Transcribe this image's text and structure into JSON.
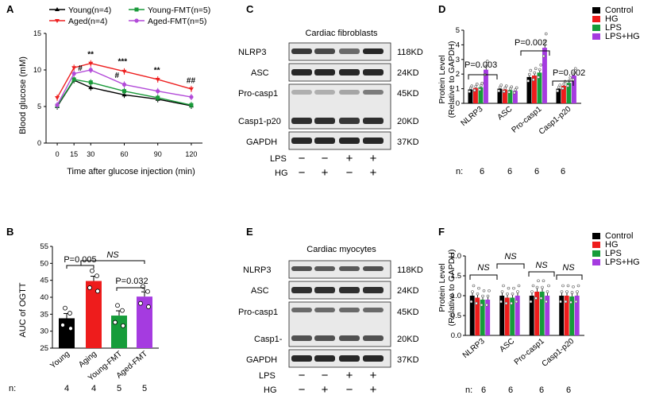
{
  "panels": {
    "A": {
      "letter": "A",
      "legend": [
        "Young(n=4)",
        "Aged(n=4)",
        "Young-FMT(n=5)",
        "Aged-FMT(n=5)"
      ],
      "xlabel": "Time after glucose injection (min)",
      "ylabel": "Blood glucose (mM)",
      "annotations": [
        "**",
        "#",
        "***",
        "#",
        "**",
        "##"
      ]
    },
    "B": {
      "letter": "B",
      "ylabel": "AUC of OGTT",
      "stats": [
        "P=0.005",
        "NS",
        "P=0.032"
      ],
      "n_label": "n:",
      "n_values": [
        "4",
        "4",
        "5",
        "5"
      ]
    },
    "C": {
      "letter": "C",
      "title": "Cardiac fibroblasts",
      "proteins": [
        "NLRP3",
        "ASC",
        "Pro-casp1",
        "Casp1-p20",
        "GAPDH"
      ],
      "sizes": [
        "118KD",
        "24KD",
        "45KD",
        "20KD",
        "37KD"
      ],
      "lps_label": "LPS",
      "hg_label": "HG",
      "lps_signs": [
        "−",
        "−",
        "+",
        "+"
      ],
      "hg_signs": [
        "−",
        "+",
        "−",
        "+"
      ]
    },
    "D": {
      "letter": "D",
      "ylabel_line1": "Protein Level",
      "ylabel_line2": "(Relative to GAPDH)",
      "stats": [
        "P=0.003",
        "P=0.002",
        "P=0.002"
      ],
      "n_label": "n:",
      "n_values": [
        "6",
        "6",
        "6",
        "6"
      ]
    },
    "E": {
      "letter": "E",
      "title": "Cardiac myocytes",
      "proteins": [
        "NLRP3",
        "ASC",
        "Pro-casp1",
        "Casp1-",
        "GAPDH"
      ],
      "sizes": [
        "118KD",
        "24KD",
        "45KD",
        "20KD",
        "37KD"
      ],
      "lps_label": "LPS",
      "hg_label": "HG",
      "lps_signs": [
        "−",
        "−",
        "+",
        "+"
      ],
      "hg_signs": [
        "−",
        "+",
        "−",
        "+"
      ]
    },
    "F": {
      "letter": "F",
      "ylabel_line1": "Protein Level",
      "ylabel_line2": "(Relative to GAPDH)",
      "stats": [
        "NS",
        "NS",
        "NS",
        "NS"
      ],
      "n_label": "n:",
      "n_values": [
        "6",
        "6",
        "6",
        "6"
      ]
    }
  },
  "chart_data": [
    {
      "id": "A",
      "type": "line",
      "x": [
        0,
        15,
        30,
        60,
        90,
        120
      ],
      "xlim": [
        -10,
        130
      ],
      "ylim": [
        0,
        15
      ],
      "xticks": [
        "0",
        "15",
        "30",
        "60",
        "90",
        "120"
      ],
      "yticks": [
        "0",
        "5",
        "10",
        "15"
      ],
      "xlabel": "Time after glucose injection (min)",
      "ylabel": "Blood glucose (mM)",
      "series": [
        {
          "name": "Young(n=4)",
          "color": "#000000",
          "values": [
            5.0,
            8.6,
            7.6,
            6.6,
            6.0,
            5.1
          ]
        },
        {
          "name": "Aged(n=4)",
          "color": "#ee2020",
          "values": [
            6.2,
            10.3,
            10.9,
            9.8,
            8.7,
            7.4
          ]
        },
        {
          "name": "Young-FMT(n=5)",
          "color": "#1a9a3a",
          "values": [
            5.1,
            8.7,
            8.3,
            7.1,
            6.2,
            5.2
          ]
        },
        {
          "name": "Aged-FMT(n=5)",
          "color": "#b24ad8",
          "values": [
            5.2,
            9.5,
            10.0,
            8.0,
            7.1,
            6.3
          ]
        }
      ],
      "grid": false,
      "legend": "top"
    },
    {
      "id": "B",
      "type": "bar",
      "categories": [
        "Young",
        "Aging",
        "Young-FMT",
        "Aged-FMT"
      ],
      "values": [
        33.8,
        44.8,
        34.6,
        40.2
      ],
      "colors": [
        "#000000",
        "#ee1c1c",
        "#169c3a",
        "#a53be0"
      ],
      "ylim": [
        25,
        55
      ],
      "yticks": [
        "25",
        "30",
        "35",
        "40",
        "45",
        "50",
        "55"
      ],
      "ylabel": "AUC of OGTT",
      "grid": false
    },
    {
      "id": "D",
      "type": "bar",
      "categories": [
        "NLRP3",
        "ASC",
        "Pro-casp1",
        "Casp1-p20"
      ],
      "series": [
        {
          "name": "Control",
          "color": "#000000",
          "values": [
            0.95,
            1.0,
            1.8,
            1.0
          ]
        },
        {
          "name": "HG",
          "color": "#ee1c1c",
          "values": [
            1.05,
            0.95,
            1.9,
            1.2
          ]
        },
        {
          "name": "LPS",
          "color": "#169c3a",
          "values": [
            1.1,
            0.9,
            2.1,
            1.4
          ]
        },
        {
          "name": "LPS+HG",
          "color": "#a53be0",
          "values": [
            2.3,
            0.85,
            3.8,
            1.9
          ]
        }
      ],
      "ylim": [
        0,
        5
      ],
      "yticks": [
        "0",
        "1",
        "2",
        "3",
        "4",
        "5"
      ],
      "ylabel": "Protein Level (Relative to GAPDH)",
      "legend": "top-right",
      "grid": false
    },
    {
      "id": "F",
      "type": "bar",
      "categories": [
        "NLRP3",
        "ASC",
        "Pro-casp1",
        "Casp1-p20"
      ],
      "series": [
        {
          "name": "Control",
          "color": "#000000",
          "values": [
            1.0,
            1.0,
            1.0,
            1.0
          ]
        },
        {
          "name": "HG",
          "color": "#ee1c1c",
          "values": [
            0.95,
            0.95,
            1.1,
            1.0
          ]
        },
        {
          "name": "LPS",
          "color": "#169c3a",
          "values": [
            0.9,
            0.95,
            1.1,
            0.98
          ]
        },
        {
          "name": "LPS+HG",
          "color": "#a53be0",
          "values": [
            0.9,
            1.0,
            1.0,
            1.0
          ]
        }
      ],
      "ylim": [
        0,
        2.0
      ],
      "yticks": [
        "0.0",
        "0.5",
        "1.0",
        "1.5",
        "2.0"
      ],
      "ylabel": "Protein Level (Relative to GAPDH)",
      "legend": "top-right",
      "grid": false
    }
  ]
}
